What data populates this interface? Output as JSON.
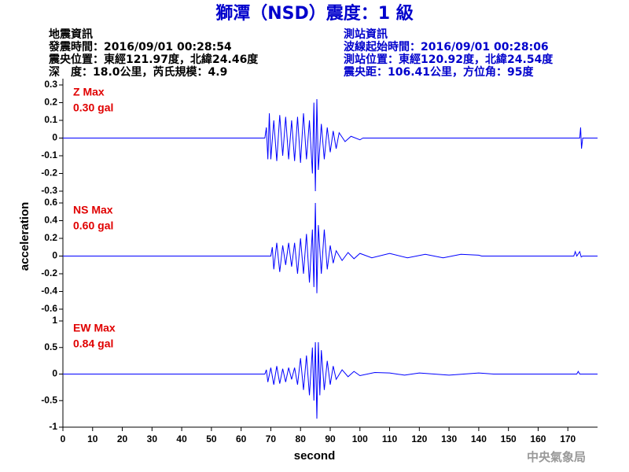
{
  "header": {
    "title": "獅潭（NSD）震度：1 級",
    "left": [
      "地震資訊",
      "發震時間：2016/09/01 00:28:54",
      "震央位置：東經121.97度，北緯24.46度",
      "深　度：18.0公里，芮氏規模：4.9"
    ],
    "right": [
      "測站資訊",
      "波線起始時間：2016/09/01 00:28:06",
      "測站位置：東經120.92度，北緯24.54度",
      "震央距：106.41公里，方位角：95度"
    ],
    "credit": "中央氣象局"
  },
  "chart_data": [
    {
      "type": "line",
      "color": "#0000ff",
      "annotations": [
        "Z Max",
        "0.30 gal"
      ],
      "x": [
        0,
        68,
        68.5,
        69,
        69.5,
        70,
        71,
        72,
        73,
        74,
        75,
        76,
        77,
        78,
        79,
        80,
        81,
        82,
        83,
        84,
        84.5,
        85,
        85.5,
        86,
        87,
        88,
        89,
        90,
        91,
        92,
        93,
        95,
        97,
        100,
        101,
        174,
        174.3,
        174.6,
        175,
        180
      ],
      "values": [
        0,
        0,
        0.06,
        -0.12,
        0.14,
        -0.12,
        0.1,
        -0.13,
        0.13,
        -0.1,
        0.12,
        -0.12,
        0.1,
        -0.13,
        0.12,
        -0.14,
        0.14,
        -0.12,
        0.1,
        -0.2,
        0.2,
        -0.3,
        0.22,
        -0.18,
        0.08,
        -0.12,
        0.06,
        -0.08,
        0.04,
        -0.06,
        0.03,
        -0.02,
        0.01,
        -0.01,
        0,
        0,
        0.06,
        -0.06,
        0,
        0
      ],
      "xlim": [
        0,
        180
      ],
      "ylim": [
        -0.3,
        0.3
      ],
      "yticks": [
        0.3,
        0.2,
        0.1,
        0,
        -0.1,
        -0.2,
        -0.3
      ]
    },
    {
      "type": "line",
      "color": "#0000ff",
      "annotations": [
        "NS Max",
        "0.60 gal"
      ],
      "ylabel": "acceleration",
      "x": [
        0,
        70,
        70.5,
        71,
        72,
        73,
        74,
        75,
        76,
        77,
        78,
        79,
        80,
        81,
        82,
        83,
        84,
        84.5,
        85,
        85.5,
        86,
        87,
        88,
        89,
        90,
        91,
        92,
        94,
        96,
        98,
        100,
        104,
        110,
        116,
        122,
        128,
        134,
        140,
        141,
        172,
        172.5,
        173,
        174,
        174.5,
        175,
        180
      ],
      "values": [
        0,
        0,
        0.1,
        -0.15,
        0.15,
        -0.18,
        0.12,
        -0.1,
        0.15,
        -0.12,
        0.15,
        -0.2,
        0.2,
        -0.2,
        0.25,
        -0.3,
        0.3,
        -0.35,
        0.6,
        -0.42,
        0.35,
        -0.2,
        0.3,
        -0.15,
        0.12,
        -0.08,
        0.06,
        -0.05,
        0.04,
        -0.03,
        0.03,
        -0.02,
        0.03,
        -0.02,
        0.02,
        -0.02,
        0.02,
        0.01,
        0,
        0,
        0.05,
        0,
        0.05,
        -0.01,
        0,
        0
      ],
      "xlim": [
        0,
        180
      ],
      "ylim": [
        -0.6,
        0.6
      ],
      "yticks": [
        0.6,
        0.4,
        0.2,
        0,
        -0.2,
        -0.4,
        -0.6
      ]
    },
    {
      "type": "line",
      "color": "#0000ff",
      "annotations": [
        "EW Max",
        "0.84 gal"
      ],
      "xlabel": "second",
      "x": [
        0,
        68,
        68.5,
        69,
        70,
        71,
        72,
        73,
        74,
        75,
        76,
        77,
        78,
        79,
        80,
        81,
        82,
        83,
        84,
        84.5,
        85,
        85.5,
        86,
        86.5,
        87,
        88,
        89,
        90,
        91,
        92,
        94,
        96,
        98,
        100,
        105,
        110,
        115,
        120,
        130,
        140,
        145,
        173,
        173.5,
        174,
        180
      ],
      "values": [
        0,
        0,
        0.08,
        -0.15,
        0.12,
        -0.2,
        0.15,
        -0.18,
        0.1,
        -0.15,
        0.12,
        -0.1,
        0.12,
        -0.2,
        0.3,
        -0.3,
        0.35,
        -0.4,
        0.5,
        -0.5,
        0.6,
        -0.84,
        0.6,
        -0.4,
        0.45,
        -0.3,
        0.25,
        -0.2,
        0.15,
        -0.1,
        0.08,
        -0.05,
        0.05,
        -0.03,
        0.03,
        0.02,
        -0.02,
        0.02,
        -0.02,
        0.02,
        0,
        0,
        0.05,
        0,
        0
      ],
      "xlim": [
        0,
        180
      ],
      "ylim": [
        -1,
        1
      ],
      "yticks": [
        1,
        0.5,
        0,
        -0.5,
        -1
      ],
      "xticks": [
        0,
        10,
        20,
        30,
        40,
        50,
        60,
        70,
        80,
        90,
        100,
        110,
        120,
        130,
        140,
        150,
        160,
        170
      ]
    }
  ]
}
